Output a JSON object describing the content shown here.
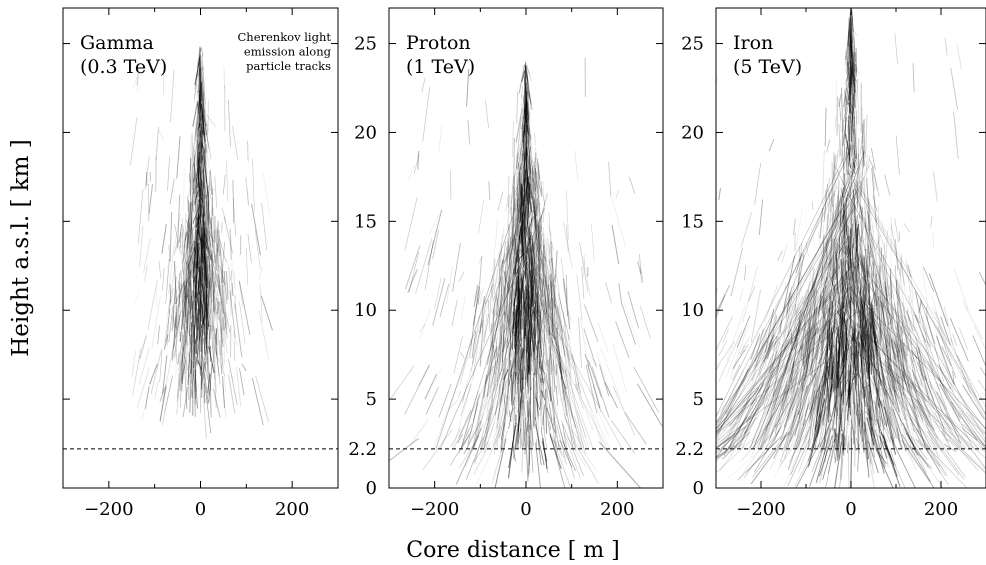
{
  "figure": {
    "ylabel": "Height a.s.l. [ km ]",
    "xlabel": "Core distance [ m ]",
    "annotation": [
      "Cherenkov light",
      "emission along",
      "particle tracks"
    ]
  },
  "chart_data": [
    {
      "type": "scatter",
      "title": [
        "Gamma",
        "(0.3 TeV)"
      ],
      "xlim": [
        -300,
        300
      ],
      "ylim": [
        0,
        27
      ],
      "x_ticks": [
        -200,
        0,
        200
      ],
      "x_tick_labels": [
        "−200",
        "0",
        "200"
      ],
      "y_ticks": [
        5,
        10,
        15,
        20,
        25
      ],
      "y_tick_labels": [],
      "reference_line": {
        "y": 2.2,
        "style": "dashed"
      },
      "shower": {
        "core_top_km": 25,
        "max_km": 12,
        "bottom_km": 5.5,
        "lateral_spread_m": 100,
        "density": "low"
      }
    },
    {
      "type": "scatter",
      "title": [
        "Proton",
        "(1 TeV)"
      ],
      "xlim": [
        -300,
        300
      ],
      "ylim": [
        0,
        27
      ],
      "x_ticks": [
        -200,
        0,
        200
      ],
      "x_tick_labels": [
        "−200",
        "0",
        "200"
      ],
      "y_ticks": [
        0,
        2.2,
        5,
        10,
        15,
        20,
        25
      ],
      "y_tick_labels": [
        "0",
        "2.2",
        "5",
        "10",
        "15",
        "20",
        "25"
      ],
      "reference_line": {
        "y": 2.2,
        "style": "dashed"
      },
      "shower": {
        "core_top_km": 24,
        "max_km": 10,
        "bottom_km": 2.5,
        "lateral_spread_m": 180,
        "density": "medium"
      }
    },
    {
      "type": "scatter",
      "title": [
        "Iron",
        "(5 TeV)"
      ],
      "xlim": [
        -300,
        300
      ],
      "ylim": [
        0,
        27
      ],
      "x_ticks": [
        -200,
        0,
        200
      ],
      "x_tick_labels": [
        "−200",
        "0",
        "200"
      ],
      "y_ticks": [
        0,
        2.2,
        5,
        10,
        15,
        20,
        25
      ],
      "y_tick_labels": [
        "0",
        "2.2",
        "5",
        "10",
        "15",
        "20",
        "25"
      ],
      "reference_line": {
        "y": 2.2,
        "style": "dashed"
      },
      "shower": {
        "core_top_km": 27,
        "max_km": 8,
        "bottom_km": 2.2,
        "lateral_spread_m": 300,
        "density": "high"
      }
    }
  ]
}
